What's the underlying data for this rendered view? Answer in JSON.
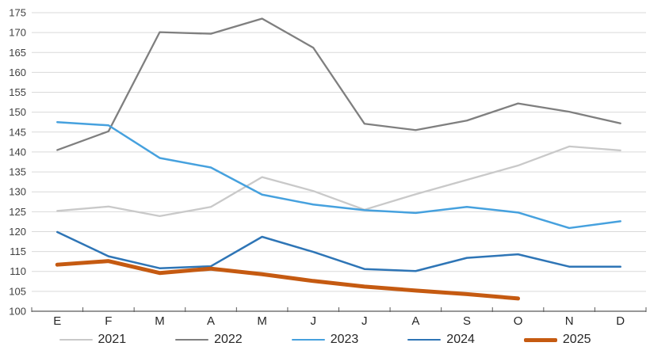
{
  "chart_data": {
    "type": "line",
    "categories": [
      "E",
      "F",
      "M",
      "A",
      "M",
      "J",
      "J",
      "A",
      "S",
      "O",
      "N",
      "D"
    ],
    "series": [
      {
        "name": "2021",
        "color": "#c9c9c9",
        "line_width": 2.3,
        "values": [
          125.2,
          126.3,
          123.9,
          126.2,
          133.7,
          130.2,
          125.5,
          129.4,
          133.0,
          136.6,
          141.4,
          140.4
        ]
      },
      {
        "name": "2022",
        "color": "#7f7f7f",
        "line_width": 2.3,
        "values": [
          140.5,
          145.2,
          170.1,
          169.7,
          173.5,
          166.2,
          147.1,
          145.5,
          147.9,
          152.2,
          150.1,
          147.2
        ]
      },
      {
        "name": "2023",
        "color": "#46a1de",
        "line_width": 2.5,
        "values": [
          147.5,
          146.7,
          138.5,
          136.1,
          129.3,
          126.8,
          125.4,
          124.7,
          126.2,
          124.8,
          120.9,
          122.6
        ]
      },
      {
        "name": "2024",
        "color": "#2e75b6",
        "line_width": 2.5,
        "values": [
          119.9,
          113.8,
          110.8,
          111.3,
          118.7,
          114.9,
          110.6,
          110.1,
          113.4,
          114.3,
          111.2,
          111.2
        ]
      },
      {
        "name": "2025",
        "color": "#c55a11",
        "line_width": 5,
        "values": [
          111.7,
          112.6,
          109.6,
          110.7,
          109.3,
          107.6,
          106.2,
          105.2,
          104.3,
          103.2,
          null,
          null
        ]
      }
    ],
    "title": "",
    "xlabel": "",
    "ylabel": "",
    "ylim": [
      100,
      175
    ],
    "ytick_step": 5,
    "ytick_labels": [
      "100",
      "105",
      "110",
      "115",
      "120",
      "125",
      "130",
      "135",
      "140",
      "145",
      "150",
      "155",
      "160",
      "165",
      "170",
      "175"
    ],
    "grid": "horizontal",
    "legend_position": "bottom"
  },
  "style": {
    "background_color": "#ffffff",
    "gridline_color": "#d9d9d9",
    "axis_color": "#595959",
    "ytick_label_color": "#404040",
    "xtick_label_color": "#262626",
    "legend_text_color": "#262626"
  }
}
